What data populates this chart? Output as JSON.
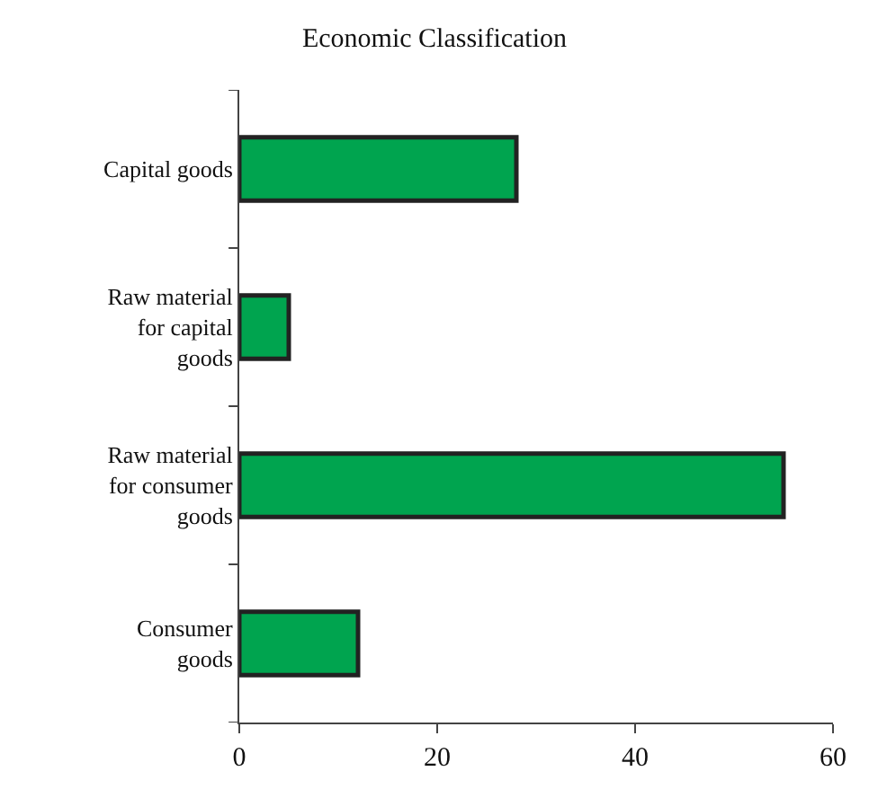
{
  "chart_data": {
    "type": "bar",
    "orientation": "horizontal",
    "title": "Economic Classification",
    "categories": [
      "Capital goods",
      "Raw material for capital goods",
      "Raw material for consumer goods",
      "Consumer goods"
    ],
    "values": [
      28,
      5,
      55,
      12
    ],
    "color": "#00a44f",
    "xlim": [
      0,
      60
    ],
    "xticks": [
      0,
      20,
      40,
      60
    ]
  }
}
